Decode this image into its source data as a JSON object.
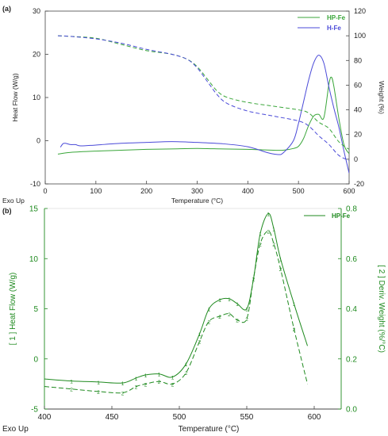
{
  "colors": {
    "green": "#3aa63a",
    "blue": "#4a4ad8",
    "darkgreen": "#1f8a1f",
    "axis": "#444444",
    "text": "#222222"
  },
  "chart_data": [
    {
      "panel_label": "(a)",
      "type": "line",
      "xlabel": "Temperature (°C)",
      "ylabel_left": "Heat Flow (W/g)",
      "ylabel_right": "Weight (%)",
      "corner_label": "Exo Up",
      "xlim": [
        0,
        600
      ],
      "ylim_left": [
        -10,
        30
      ],
      "ylim_right": [
        -20,
        120
      ],
      "x_ticks": [
        0,
        100,
        200,
        300,
        400,
        500,
        600
      ],
      "y_left_ticks": [
        -10,
        0,
        10,
        20,
        30
      ],
      "y_right_ticks": [
        -20,
        0,
        20,
        40,
        60,
        80,
        100,
        120
      ],
      "grid": false,
      "legend_position": "top-right",
      "legend": [
        "HP-Fe",
        "H-Fe"
      ],
      "series": [
        {
          "name": "HP-Fe",
          "kind": "heat flow",
          "axis": "left",
          "style": "solid",
          "color_key": "green",
          "x": [
            25,
            50,
            100,
            150,
            200,
            250,
            300,
            350,
            400,
            450,
            470,
            490,
            500,
            510,
            520,
            530,
            540,
            550,
            560,
            565,
            570,
            580,
            590,
            600
          ],
          "y": [
            -3.1,
            -2.7,
            -2.4,
            -2.2,
            -2.0,
            -1.9,
            -1.8,
            -1.9,
            -2.0,
            -2.2,
            -2.2,
            -1.8,
            -1.3,
            0.5,
            3.5,
            5.7,
            6.1,
            5.3,
            13.0,
            14.7,
            12.5,
            5.0,
            -1.0,
            -3.0
          ]
        },
        {
          "name": "H-Fe",
          "kind": "heat flow",
          "axis": "left",
          "style": "solid",
          "color_key": "blue",
          "x": [
            30,
            35,
            40,
            50,
            60,
            70,
            100,
            150,
            200,
            250,
            300,
            350,
            400,
            440,
            460,
            470,
            490,
            500,
            510,
            520,
            530,
            540,
            550,
            560,
            570,
            580,
            590,
            600
          ],
          "y": [
            -1.5,
            -0.7,
            -0.6,
            -0.9,
            -0.9,
            -1.2,
            -1.0,
            -0.6,
            -0.4,
            -0.2,
            -0.4,
            -0.7,
            -1.4,
            -2.8,
            -3.2,
            -2.8,
            0.0,
            4.0,
            9.0,
            14.0,
            18.0,
            19.8,
            18.0,
            12.5,
            7.5,
            3.0,
            -2.5,
            -7.5
          ]
        },
        {
          "name": "HP-Fe",
          "kind": "weight",
          "axis": "right",
          "style": "dashed",
          "color_key": "green",
          "x": [
            25,
            50,
            100,
            150,
            200,
            250,
            280,
            300,
            320,
            340,
            360,
            400,
            450,
            500,
            520,
            540,
            560,
            580,
            600
          ],
          "y": [
            100,
            99.5,
            98,
            93,
            88,
            85,
            81,
            75,
            65,
            55,
            50,
            46,
            43,
            40,
            37.5,
            30,
            25,
            14,
            8
          ]
        },
        {
          "name": "H-Fe",
          "kind": "weight",
          "axis": "right",
          "style": "dashed",
          "color_key": "blue",
          "x": [
            25,
            50,
            100,
            150,
            200,
            250,
            280,
            300,
            320,
            340,
            360,
            400,
            450,
            500,
            520,
            540,
            560,
            580,
            600
          ],
          "y": [
            100,
            99.5,
            97.5,
            94,
            89,
            85,
            81,
            74,
            63,
            52,
            45,
            39,
            35,
            31,
            27,
            19,
            12,
            3,
            -1
          ]
        }
      ]
    },
    {
      "panel_label": "(b)",
      "type": "line",
      "xlabel": "Temperature (°C)",
      "ylabel_left": "[ 1 ] Heat Flow (W/g)",
      "ylabel_right": "[ 2 ] Deriv. Weight (%/°C)",
      "corner_label": "Exo Up",
      "xlim": [
        400,
        620
      ],
      "ylim_left": [
        -5,
        15
      ],
      "ylim_right": [
        0.0,
        0.8
      ],
      "x_ticks": [
        400,
        450,
        500,
        550,
        600
      ],
      "y_left_ticks": [
        -5,
        0,
        5,
        10,
        15
      ],
      "y_right_ticks": [
        0.0,
        0.2,
        0.4,
        0.6,
        0.8
      ],
      "grid": false,
      "legend_position": "top-right",
      "legend": [
        "HP-Fe"
      ],
      "series": [
        {
          "name": "HP-Fe",
          "marker_label": "1",
          "axis": "left",
          "style": "solid",
          "color_key": "darkgreen",
          "x": [
            400,
            420,
            440,
            458,
            468,
            475,
            485,
            495,
            505,
            515,
            522,
            530,
            537,
            543,
            550,
            555,
            560,
            566,
            570,
            575,
            585,
            595
          ],
          "y": [
            -2.0,
            -2.2,
            -2.3,
            -2.4,
            -1.9,
            -1.6,
            -1.5,
            -1.8,
            -0.5,
            2.5,
            5.0,
            5.9,
            6.0,
            5.5,
            5.0,
            8.0,
            12.5,
            14.5,
            13.0,
            10.0,
            5.5,
            1.3
          ]
        },
        {
          "name": "HP-Fe",
          "marker_label": "2",
          "axis": "right",
          "style": "dashed",
          "color_key": "darkgreen",
          "x": [
            400,
            420,
            440,
            458,
            468,
            475,
            485,
            495,
            505,
            515,
            522,
            530,
            537,
            543,
            550,
            555,
            560,
            566,
            570,
            575,
            585,
            595
          ],
          "y": [
            0.09,
            0.08,
            0.07,
            0.065,
            0.09,
            0.1,
            0.11,
            0.1,
            0.145,
            0.27,
            0.35,
            0.37,
            0.38,
            0.355,
            0.36,
            0.52,
            0.66,
            0.71,
            0.66,
            0.56,
            0.32,
            0.1
          ]
        }
      ]
    }
  ]
}
